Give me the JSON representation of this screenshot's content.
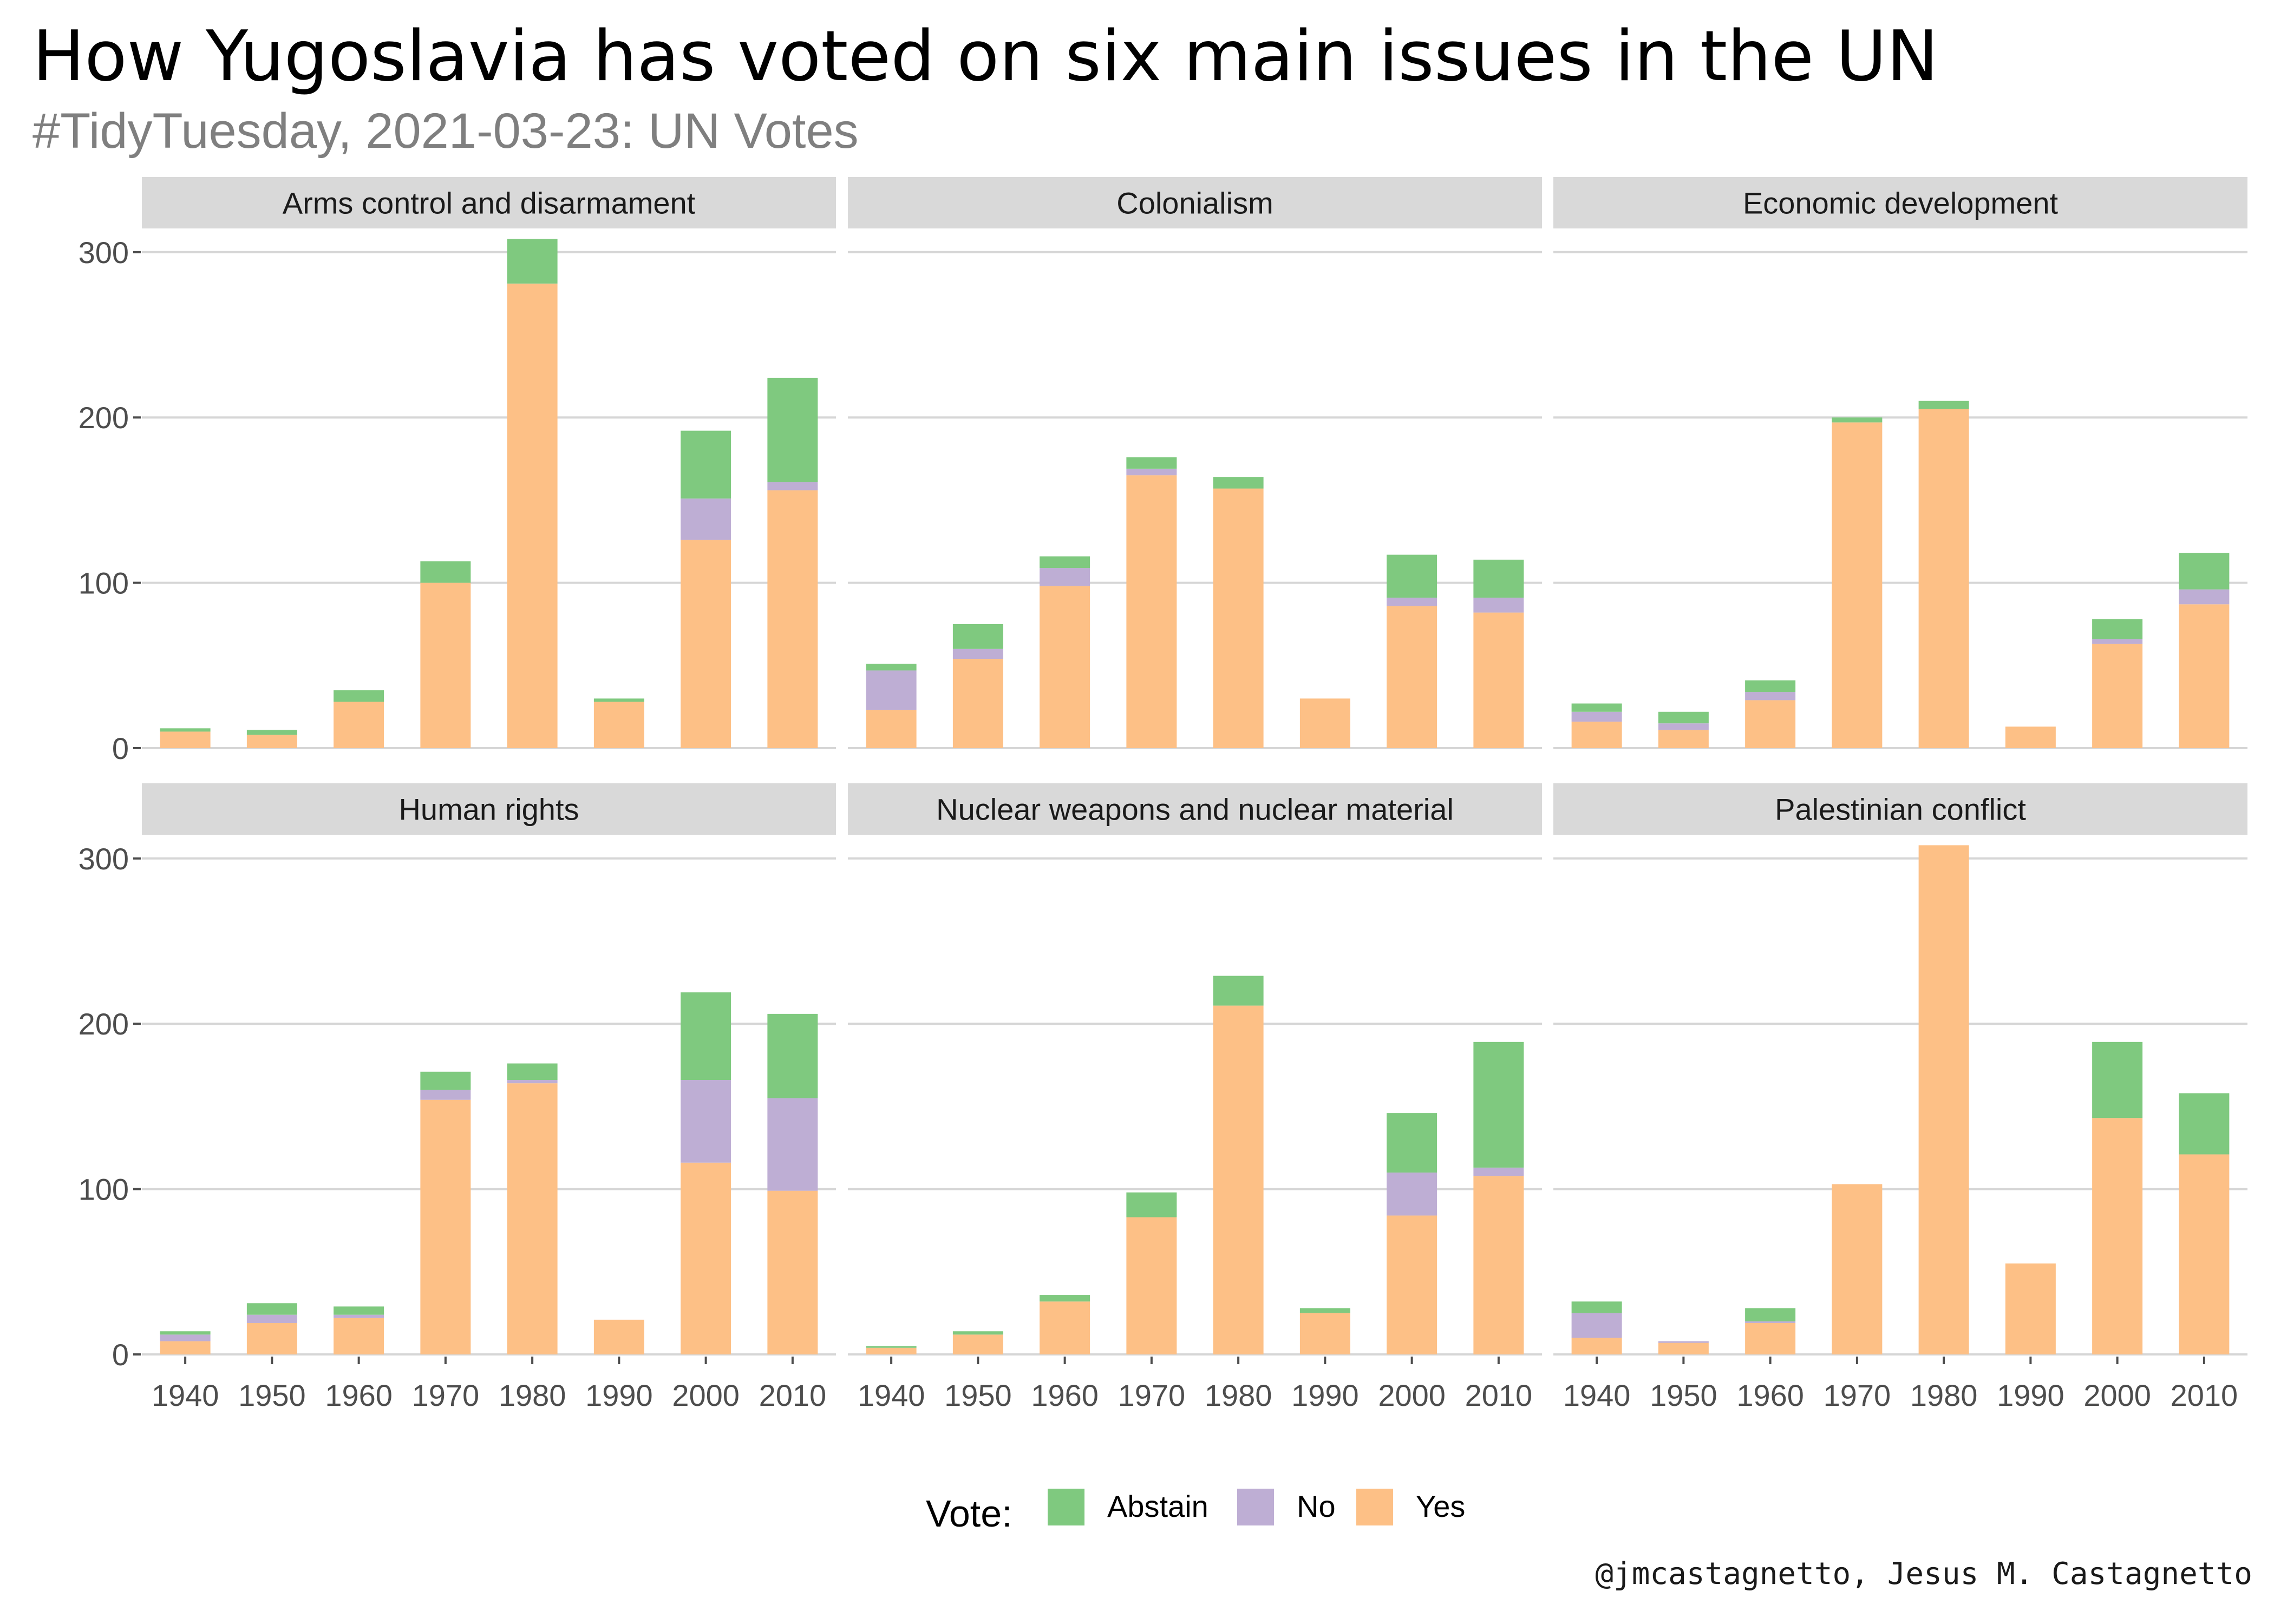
{
  "header": {
    "title": "How Yugoslavia has voted on six main issues in the UN",
    "subtitle": "#TidyTuesday, 2021-03-23: UN Votes"
  },
  "caption": "@jmcastagnetto, Jesus M. Castagnetto",
  "colors": {
    "Abstain": "#7fc97f",
    "No": "#beaed4",
    "Yes": "#fdc086",
    "strip": "#d9d9d9",
    "grid": "#d6d6d6"
  },
  "chart_data": {
    "type": "bar",
    "stacked": true,
    "facet_layout": "2 rows x 3 columns",
    "legend": {
      "title": "Vote:",
      "position": "bottom",
      "entries": [
        "Abstain",
        "No",
        "Yes"
      ]
    },
    "categories": [
      "1940",
      "1950",
      "1960",
      "1970",
      "1980",
      "1990",
      "2000",
      "2010"
    ],
    "y_ticks": [
      0,
      100,
      200,
      300
    ],
    "ylim": [
      0,
      315
    ],
    "grid": true,
    "facets": [
      {
        "label": "Arms control and disarmament",
        "series": [
          {
            "name": "Yes",
            "values": [
              10,
              8,
              28,
              100,
              281,
              28,
              126,
              156
            ]
          },
          {
            "name": "No",
            "values": [
              0,
              0,
              0,
              0,
              0,
              0,
              25,
              5
            ]
          },
          {
            "name": "Abstain",
            "values": [
              2,
              3,
              7,
              13,
              27,
              2,
              41,
              63
            ]
          }
        ]
      },
      {
        "label": "Colonialism",
        "series": [
          {
            "name": "Yes",
            "values": [
              23,
              54,
              98,
              165,
              157,
              30,
              86,
              82
            ]
          },
          {
            "name": "No",
            "values": [
              24,
              6,
              11,
              4,
              0,
              0,
              5,
              9
            ]
          },
          {
            "name": "Abstain",
            "values": [
              4,
              15,
              7,
              7,
              7,
              0,
              26,
              23
            ]
          }
        ]
      },
      {
        "label": "Economic development",
        "series": [
          {
            "name": "Yes",
            "values": [
              16,
              11,
              29,
              197,
              205,
              13,
              63,
              87
            ]
          },
          {
            "name": "No",
            "values": [
              6,
              4,
              5,
              0,
              0,
              0,
              3,
              9
            ]
          },
          {
            "name": "Abstain",
            "values": [
              5,
              7,
              7,
              3,
              5,
              0,
              12,
              22
            ]
          }
        ]
      },
      {
        "label": "Human rights",
        "series": [
          {
            "name": "Yes",
            "values": [
              8,
              19,
              22,
              154,
              164,
              21,
              116,
              99
            ]
          },
          {
            "name": "No",
            "values": [
              4,
              5,
              2,
              6,
              2,
              0,
              50,
              56
            ]
          },
          {
            "name": "Abstain",
            "values": [
              2,
              7,
              5,
              11,
              10,
              0,
              53,
              51
            ]
          }
        ]
      },
      {
        "label": "Nuclear weapons and nuclear material",
        "series": [
          {
            "name": "Yes",
            "values": [
              4,
              12,
              32,
              83,
              211,
              25,
              84,
              108
            ]
          },
          {
            "name": "No",
            "values": [
              0,
              0,
              0,
              0,
              0,
              0,
              26,
              5
            ]
          },
          {
            "name": "Abstain",
            "values": [
              1,
              2,
              4,
              15,
              18,
              3,
              36,
              76
            ]
          }
        ]
      },
      {
        "label": "Palestinian conflict",
        "series": [
          {
            "name": "Yes",
            "values": [
              10,
              7,
              19,
              103,
              308,
              55,
              143,
              121
            ]
          },
          {
            "name": "No",
            "values": [
              15,
              1,
              1,
              0,
              0,
              0,
              0,
              0
            ]
          },
          {
            "name": "Abstain",
            "values": [
              7,
              0,
              8,
              0,
              0,
              0,
              46,
              37
            ]
          }
        ]
      }
    ]
  }
}
